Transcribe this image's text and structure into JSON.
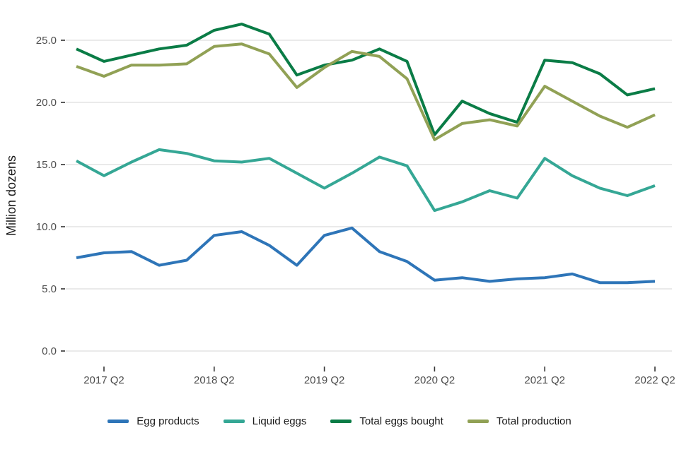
{
  "chart_data": {
    "type": "line",
    "title": "",
    "xlabel": "",
    "ylabel": "Million dozens",
    "x_unit": "quarterly, 2017 Q1 to 2022 Q2",
    "categories": [
      "2017 Q1",
      "2017 Q2",
      "2017 Q3",
      "2017 Q4",
      "2018 Q1",
      "2018 Q2",
      "2018 Q3",
      "2018 Q4",
      "2019 Q1",
      "2019 Q2",
      "2019 Q3",
      "2019 Q4",
      "2020 Q1",
      "2020 Q2",
      "2020 Q3",
      "2020 Q4",
      "2021 Q1",
      "2021 Q2",
      "2021 Q3",
      "2021 Q4",
      "2022 Q1",
      "2022 Q2"
    ],
    "x_tick_labels": [
      "2017 Q2",
      "2018 Q2",
      "2019 Q2",
      "2020 Q2",
      "2021 Q2",
      "2022 Q2"
    ],
    "y_ticks": [
      0,
      5,
      10,
      15,
      20,
      25
    ],
    "y_tick_labels": [
      "0.0",
      "5.0",
      "10.0",
      "15.0",
      "20.0",
      "25.0"
    ],
    "ylim": [
      -1.3,
      27.6
    ],
    "grid": "horizontal-only",
    "legend_position": "bottom",
    "background_color": "#ffffff",
    "gridline_color": "#e4e4e4",
    "tick_mark_color": "#333333",
    "tick_label_color": "#4d4d4d",
    "series": [
      {
        "name": "Egg products",
        "color": "#2e75b8",
        "values": [
          7.5,
          7.9,
          8.0,
          6.9,
          7.3,
          9.3,
          9.6,
          8.5,
          6.9,
          9.3,
          9.9,
          8.0,
          7.2,
          5.7,
          5.9,
          5.6,
          5.8,
          5.9,
          6.2,
          5.5,
          5.5,
          5.6
        ]
      },
      {
        "name": "Liquid eggs",
        "color": "#35a795",
        "values": [
          15.3,
          14.1,
          15.2,
          16.2,
          15.9,
          15.3,
          15.2,
          15.5,
          14.3,
          13.1,
          14.3,
          15.6,
          14.9,
          11.3,
          12.0,
          12.9,
          12.3,
          15.5,
          14.1,
          13.1,
          12.5,
          13.3
        ]
      },
      {
        "name": "Total eggs bought",
        "color": "#0a7c46",
        "values": [
          24.3,
          23.3,
          23.8,
          24.3,
          24.6,
          25.8,
          26.3,
          25.5,
          22.2,
          23.0,
          23.4,
          24.3,
          23.3,
          17.4,
          20.1,
          19.1,
          18.4,
          23.4,
          23.2,
          22.3,
          20.6,
          21.1
        ]
      },
      {
        "name": "Total production",
        "color": "#91a155",
        "values": [
          22.9,
          22.1,
          23.0,
          23.0,
          23.1,
          24.5,
          24.7,
          23.9,
          21.2,
          22.8,
          24.1,
          23.7,
          21.9,
          17.0,
          18.3,
          18.6,
          18.1,
          21.3,
          20.1,
          18.9,
          18.0,
          19.0
        ]
      }
    ]
  }
}
